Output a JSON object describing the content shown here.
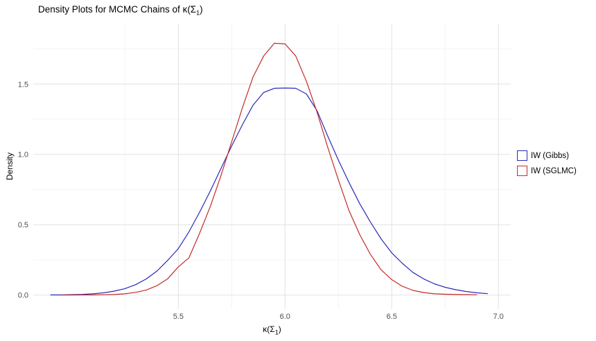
{
  "title": {
    "prefix": "Density Plots for MCMC Chains of ",
    "kappa": "κ(Σ",
    "sub": "1",
    "suffix": ")"
  },
  "axes": {
    "y_label": "Density",
    "x_label": {
      "kappa": "κ(Σ",
      "sub": "1",
      "suffix": ")"
    }
  },
  "legend": {
    "items": [
      {
        "label": "IW (Gibbs)",
        "color": "#2828B8"
      },
      {
        "label": "IW (SGLMC)",
        "color": "#C62828"
      }
    ]
  },
  "chart_data": {
    "type": "line",
    "title": "Density Plots for MCMC Chains of κ(Σ1)",
    "xlabel": "κ(Σ1)",
    "ylabel": "Density",
    "xlim": [
      4.82,
      7.058
    ],
    "ylim": [
      -0.1,
      1.93
    ],
    "x_ticks": [
      5.5,
      6.0,
      6.5,
      7.0
    ],
    "y_ticks": [
      0.0,
      0.5,
      1.0,
      1.5
    ],
    "x_minor": [
      5.25,
      5.75,
      6.25,
      6.75
    ],
    "y_minor": [
      0.25,
      0.75,
      1.25,
      1.75
    ],
    "grid": true,
    "legend_position": "right",
    "colors": {
      "grid_major": "#e2e2e2",
      "grid_minor": "#f0f0f0",
      "tick_label": "#4d4d4d"
    },
    "series": [
      {
        "name": "IW (Gibbs)",
        "color": "#2828B8",
        "points": [
          [
            4.9,
            0.001
          ],
          [
            4.95,
            0.001
          ],
          [
            5.0,
            0.003
          ],
          [
            5.05,
            0.005
          ],
          [
            5.1,
            0.009
          ],
          [
            5.15,
            0.016
          ],
          [
            5.2,
            0.028
          ],
          [
            5.25,
            0.046
          ],
          [
            5.3,
            0.074
          ],
          [
            5.35,
            0.115
          ],
          [
            5.4,
            0.171
          ],
          [
            5.45,
            0.247
          ],
          [
            5.5,
            0.33
          ],
          [
            5.55,
            0.45
          ],
          [
            5.6,
            0.59
          ],
          [
            5.65,
            0.74
          ],
          [
            5.7,
            0.9
          ],
          [
            5.75,
            1.06
          ],
          [
            5.8,
            1.21
          ],
          [
            5.85,
            1.35
          ],
          [
            5.9,
            1.44
          ],
          [
            5.95,
            1.47
          ],
          [
            6.0,
            1.472
          ],
          [
            6.05,
            1.47
          ],
          [
            6.1,
            1.43
          ],
          [
            6.15,
            1.31
          ],
          [
            6.2,
            1.13
          ],
          [
            6.25,
            0.96
          ],
          [
            6.3,
            0.8
          ],
          [
            6.35,
            0.65
          ],
          [
            6.4,
            0.52
          ],
          [
            6.45,
            0.4
          ],
          [
            6.5,
            0.3
          ],
          [
            6.55,
            0.225
          ],
          [
            6.6,
            0.16
          ],
          [
            6.65,
            0.115
          ],
          [
            6.7,
            0.08
          ],
          [
            6.75,
            0.055
          ],
          [
            6.8,
            0.038
          ],
          [
            6.85,
            0.025
          ],
          [
            6.9,
            0.016
          ],
          [
            6.95,
            0.01
          ]
        ]
      },
      {
        "name": "IW (SGLMC)",
        "color": "#C62828",
        "points": [
          [
            4.95,
            0.0
          ],
          [
            5.0,
            0.0
          ],
          [
            5.05,
            0.001
          ],
          [
            5.1,
            0.001
          ],
          [
            5.15,
            0.002
          ],
          [
            5.2,
            0.004
          ],
          [
            5.25,
            0.009
          ],
          [
            5.3,
            0.019
          ],
          [
            5.35,
            0.036
          ],
          [
            5.4,
            0.067
          ],
          [
            5.45,
            0.116
          ],
          [
            5.5,
            0.2
          ],
          [
            5.55,
            0.265
          ],
          [
            5.6,
            0.44
          ],
          [
            5.65,
            0.63
          ],
          [
            5.7,
            0.85
          ],
          [
            5.75,
            1.09
          ],
          [
            5.8,
            1.33
          ],
          [
            5.85,
            1.55
          ],
          [
            5.9,
            1.7
          ],
          [
            5.95,
            1.79
          ],
          [
            6.0,
            1.785
          ],
          [
            6.05,
            1.7
          ],
          [
            6.1,
            1.52
          ],
          [
            6.15,
            1.3
          ],
          [
            6.2,
            1.05
          ],
          [
            6.25,
            0.82
          ],
          [
            6.3,
            0.6
          ],
          [
            6.35,
            0.43
          ],
          [
            6.4,
            0.29
          ],
          [
            6.45,
            0.18
          ],
          [
            6.5,
            0.11
          ],
          [
            6.55,
            0.062
          ],
          [
            6.6,
            0.033
          ],
          [
            6.65,
            0.018
          ],
          [
            6.7,
            0.009
          ],
          [
            6.75,
            0.006
          ],
          [
            6.8,
            0.004
          ],
          [
            6.85,
            0.003
          ],
          [
            6.9,
            0.002
          ]
        ]
      }
    ]
  }
}
